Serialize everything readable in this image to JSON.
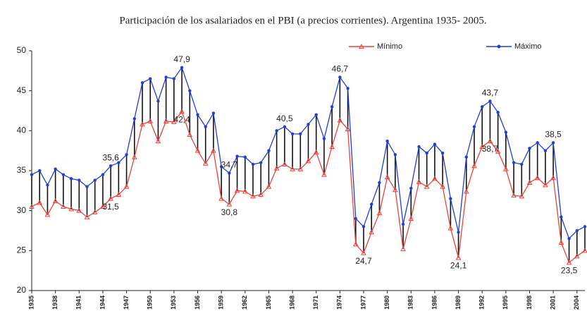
{
  "chart_data": {
    "type": "line",
    "title": "Participación de los asalariados en el PBI (a precios corrientes). Argentina 1935- 2005.",
    "x": [
      1935,
      1936,
      1937,
      1938,
      1939,
      1940,
      1941,
      1942,
      1943,
      1944,
      1945,
      1946,
      1947,
      1948,
      1949,
      1950,
      1951,
      1952,
      1953,
      1954,
      1955,
      1956,
      1957,
      1958,
      1959,
      1960,
      1961,
      1962,
      1963,
      1964,
      1965,
      1966,
      1967,
      1968,
      1969,
      1970,
      1971,
      1972,
      1973,
      1974,
      1975,
      1976,
      1977,
      1978,
      1979,
      1980,
      1981,
      1982,
      1983,
      1984,
      1985,
      1986,
      1987,
      1988,
      1989,
      1990,
      1991,
      1992,
      1993,
      1994,
      1995,
      1996,
      1997,
      1998,
      1999,
      2000,
      2001,
      2002,
      2003,
      2004,
      2005
    ],
    "xlim": [
      1935,
      2005
    ],
    "xticks": [
      1935,
      1938,
      1941,
      1944,
      1947,
      1950,
      1953,
      1956,
      1959,
      1962,
      1965,
      1968,
      1971,
      1974,
      1977,
      1980,
      1983,
      1986,
      1989,
      1992,
      1995,
      1998,
      2001,
      2004
    ],
    "ylim": [
      20,
      50
    ],
    "yticks": [
      20,
      25,
      30,
      35,
      40,
      45,
      50
    ],
    "legend": "top-right",
    "series": [
      {
        "name": "Mínimo",
        "color": "#e8423a",
        "marker": "triangle",
        "values": [
          30.5,
          31,
          29.5,
          31.2,
          30.5,
          30.2,
          30,
          29.2,
          29.8,
          30.5,
          31.5,
          32,
          33,
          36.7,
          40.8,
          41.2,
          38.7,
          41.2,
          41.1,
          42.4,
          39.5,
          37.5,
          35.9,
          37.5,
          31.5,
          30.8,
          32.5,
          32.4,
          31.8,
          32,
          33,
          35.3,
          35.8,
          35.2,
          35.2,
          36.2,
          37.3,
          34.5,
          38,
          41.3,
          40.2,
          25.8,
          24.7,
          27.3,
          29.7,
          34.2,
          32.6,
          25.2,
          29,
          33.6,
          33,
          34,
          33,
          27.8,
          24.1,
          32.4,
          35.6,
          38,
          38.7,
          37.4,
          35.2,
          31.9,
          31.8,
          33.5,
          34.1,
          33.2,
          34.1,
          26,
          23.5,
          24.3,
          25
        ],
        "value_labels": [
          null,
          null,
          null,
          null,
          null,
          null,
          null,
          null,
          null,
          null,
          "31,5",
          null,
          null,
          null,
          null,
          null,
          null,
          null,
          null,
          "42,4",
          null,
          null,
          null,
          null,
          null,
          "30,8",
          null,
          null,
          null,
          null,
          null,
          null,
          null,
          null,
          null,
          null,
          null,
          null,
          null,
          null,
          null,
          null,
          "24,7",
          null,
          null,
          null,
          null,
          null,
          null,
          null,
          null,
          null,
          null,
          null,
          "24,1",
          null,
          null,
          null,
          "38,7",
          null,
          null,
          null,
          null,
          null,
          null,
          null,
          null,
          null,
          "23,5",
          null,
          null
        ]
      },
      {
        "name": "Máximo",
        "color": "#1f3fd6",
        "marker": "circle",
        "values": [
          34.5,
          35,
          33.2,
          35.2,
          34.5,
          34,
          33.8,
          33,
          33.8,
          34.5,
          35.6,
          36,
          37,
          41.5,
          46,
          46.5,
          43.7,
          46.7,
          46.5,
          47.9,
          45,
          42,
          40.5,
          42.2,
          35.5,
          34.7,
          36.8,
          36.7,
          35.8,
          36,
          37.5,
          40,
          40.5,
          39.6,
          39.6,
          40.8,
          42,
          39,
          43,
          46.7,
          45.3,
          29,
          28,
          30.8,
          33.5,
          38.7,
          37,
          28.3,
          32.8,
          38,
          37.2,
          38.3,
          37.2,
          31.5,
          27.3,
          36.7,
          40.5,
          43,
          43.7,
          42.3,
          39.8,
          36,
          35.8,
          37.8,
          38.5,
          37.5,
          38.5,
          29.2,
          26.5,
          27.5,
          28
        ],
        "value_labels": [
          null,
          null,
          null,
          null,
          null,
          null,
          null,
          null,
          null,
          null,
          "35,6",
          null,
          null,
          null,
          null,
          null,
          null,
          null,
          null,
          "47,9",
          null,
          null,
          null,
          null,
          null,
          "34,7",
          null,
          null,
          null,
          null,
          null,
          null,
          "40,5",
          null,
          null,
          null,
          null,
          null,
          null,
          "46,7",
          null,
          null,
          null,
          null,
          null,
          null,
          null,
          null,
          null,
          null,
          null,
          null,
          null,
          null,
          null,
          null,
          null,
          null,
          "43,7",
          null,
          null,
          null,
          null,
          null,
          null,
          null,
          "38,5",
          null,
          null,
          null,
          null
        ]
      }
    ]
  }
}
